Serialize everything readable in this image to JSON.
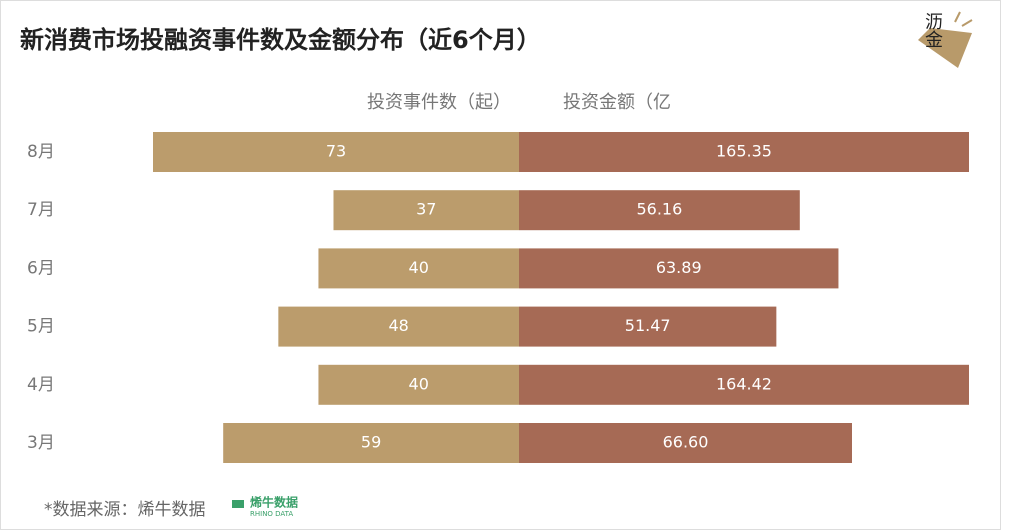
{
  "chart_data": {
    "type": "butterfly",
    "title": "新消费市场投融资事件数及金额分布（近6个月）",
    "categories": [
      "8月",
      "7月",
      "6月",
      "5月",
      "4月",
      "3月"
    ],
    "series": [
      {
        "name": "投资事件数（起）",
        "color": "#bb9c6c",
        "xlim": [
          0,
          73
        ],
        "values": [
          73,
          37,
          40,
          48,
          40,
          59
        ]
      },
      {
        "name": "投资金额（亿",
        "color": "#a66a55",
        "xlim": [
          0,
          90
        ],
        "values": [
          165.35,
          56.16,
          63.89,
          51.47,
          164.42,
          66.6
        ],
        "value_labels": [
          "165.35",
          "56.16",
          "63.89",
          "51.47",
          "164.42",
          "66.60"
        ]
      }
    ],
    "source": "*数据来源：烯牛数据",
    "source_logo": {
      "cn": "烯牛数据",
      "en": "RHINO DATA"
    },
    "brand": "沥金"
  }
}
